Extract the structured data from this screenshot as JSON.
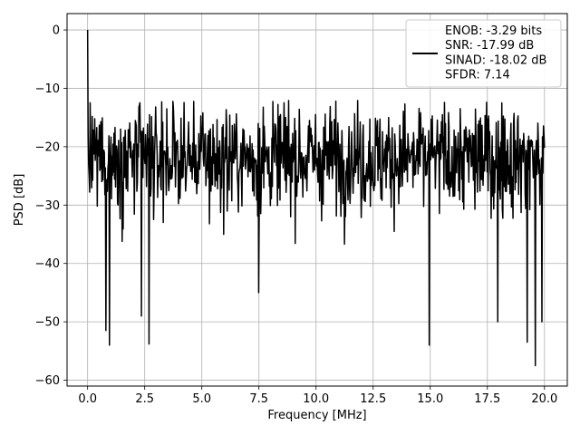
{
  "chart_data": {
    "type": "line",
    "title": "",
    "xlabel": "Frequency [MHz]",
    "ylabel": "PSD [dB]",
    "xlim": [
      -0.9,
      21.0
    ],
    "ylim": [
      -61.0,
      2.8
    ],
    "xticks": [
      0.0,
      2.5,
      5.0,
      7.5,
      10.0,
      12.5,
      15.0,
      17.5,
      20.0
    ],
    "xtick_labels": [
      "0.0",
      "2.5",
      "5.0",
      "7.5",
      "10.0",
      "12.5",
      "15.0",
      "17.5",
      "20.0"
    ],
    "yticks": [
      0,
      -10,
      -20,
      -30,
      -40,
      -50,
      -60
    ],
    "ytick_labels": [
      "0",
      "−10",
      "−20",
      "−30",
      "−40",
      "−50",
      "−60"
    ],
    "grid": true,
    "legend_position": "top-right",
    "line_color": "#000000",
    "series": [
      {
        "legend_lines": [
          "ENOB: -3.29 bits",
          "SNR: -17.99 dB",
          "SINAD: -18.02 dB",
          "SFDR: 7.14"
        ],
        "noise_floor_db": -22,
        "x_range": [
          0.0,
          20.0
        ],
        "peak": {
          "x": 0.0,
          "y": 0.0
        },
        "approx_upper_envelope_db": -12,
        "notable_dips": [
          {
            "x": 0.8,
            "y": -51.5
          },
          {
            "x": 0.95,
            "y": -54.0
          },
          {
            "x": 2.35,
            "y": -49.0
          },
          {
            "x": 2.7,
            "y": -53.8
          },
          {
            "x": 7.5,
            "y": -45.0
          },
          {
            "x": 14.95,
            "y": -54.0
          },
          {
            "x": 17.95,
            "y": -50.0
          },
          {
            "x": 19.25,
            "y": -53.5
          },
          {
            "x": 19.6,
            "y": -57.5
          },
          {
            "x": 19.9,
            "y": -50.0
          }
        ]
      }
    ]
  }
}
